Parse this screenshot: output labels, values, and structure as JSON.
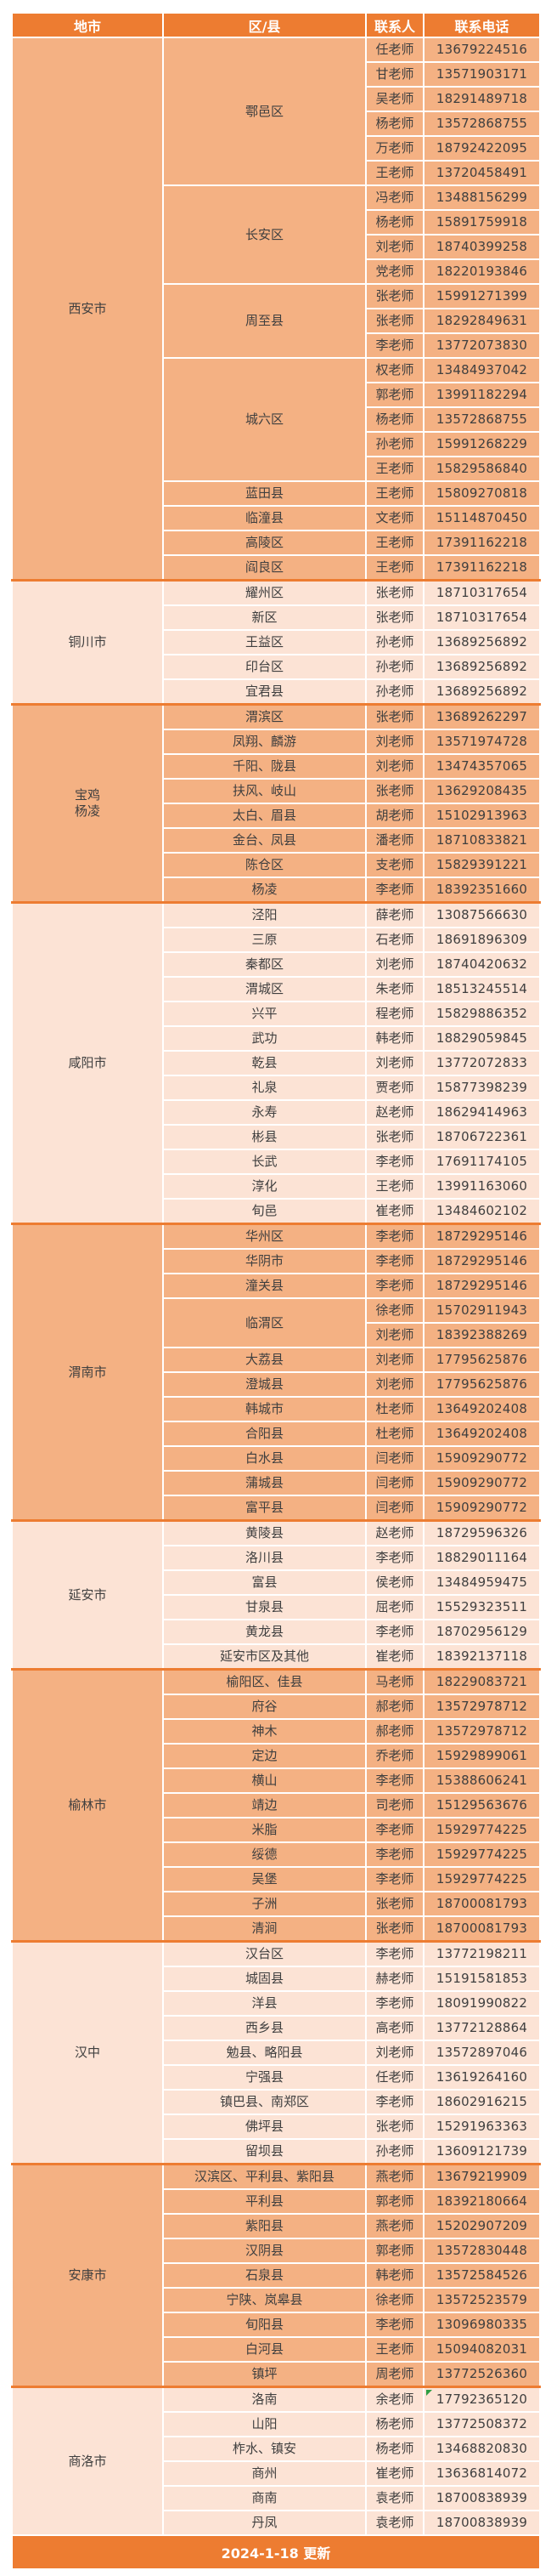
{
  "colors": {
    "header_bg": "#ED7C31",
    "dark_bg": "#F4B183",
    "light_bg": "#FCE3D5",
    "text": "#3F3F3F",
    "marker": "#2F9E44"
  },
  "table": {
    "columns": [
      "地市",
      "区/县",
      "联系人",
      "联系电话"
    ],
    "sections": [
      {
        "city": "西安市",
        "shade": "dark",
        "groups": [
          {
            "district": "鄠邑区",
            "contacts": [
              {
                "name": "任老师",
                "phone": "13679224516"
              },
              {
                "name": "甘老师",
                "phone": "13571903171"
              },
              {
                "name": "吴老师",
                "phone": "18291489718"
              },
              {
                "name": "杨老师",
                "phone": "13572868755"
              },
              {
                "name": "万老师",
                "phone": "18792422095"
              },
              {
                "name": "王老师",
                "phone": "13720458491"
              }
            ]
          },
          {
            "district": "长安区",
            "contacts": [
              {
                "name": "冯老师",
                "phone": "13488156299"
              },
              {
                "name": "杨老师",
                "phone": "15891759918"
              },
              {
                "name": "刘老师",
                "phone": "18740399258"
              },
              {
                "name": "党老师",
                "phone": "18220193846"
              }
            ]
          },
          {
            "district": "周至县",
            "contacts": [
              {
                "name": "张老师",
                "phone": "15991271399"
              },
              {
                "name": "张老师",
                "phone": "18292849631"
              },
              {
                "name": "李老师",
                "phone": "13772073830"
              }
            ]
          },
          {
            "district": "城六区",
            "contacts": [
              {
                "name": "权老师",
                "phone": "13484937042"
              },
              {
                "name": "郭老师",
                "phone": "13991182294"
              },
              {
                "name": "杨老师",
                "phone": "13572868755"
              },
              {
                "name": "孙老师",
                "phone": "15991268229"
              },
              {
                "name": "王老师",
                "phone": "15829586840"
              }
            ]
          },
          {
            "district": "蓝田县",
            "contacts": [
              {
                "name": "王老师",
                "phone": "15809270818"
              }
            ]
          },
          {
            "district": "临潼县",
            "contacts": [
              {
                "name": "文老师",
                "phone": "15114870450"
              }
            ]
          },
          {
            "district": "高陵区",
            "contacts": [
              {
                "name": "王老师",
                "phone": "17391162218"
              }
            ]
          },
          {
            "district": "阎良区",
            "contacts": [
              {
                "name": "王老师",
                "phone": "17391162218"
              }
            ]
          }
        ]
      },
      {
        "city": "铜川市",
        "shade": "light",
        "groups": [
          {
            "district": "耀州区",
            "contacts": [
              {
                "name": "张老师",
                "phone": "18710317654"
              }
            ]
          },
          {
            "district": "新区",
            "contacts": [
              {
                "name": "张老师",
                "phone": "18710317654"
              }
            ]
          },
          {
            "district": "王益区",
            "contacts": [
              {
                "name": "孙老师",
                "phone": "13689256892"
              }
            ]
          },
          {
            "district": "印台区",
            "contacts": [
              {
                "name": "孙老师",
                "phone": "13689256892"
              }
            ]
          },
          {
            "district": "宜君县",
            "contacts": [
              {
                "name": "孙老师",
                "phone": "13689256892"
              }
            ]
          }
        ]
      },
      {
        "city": "宝鸡\n杨凌",
        "shade": "dark",
        "groups": [
          {
            "district": "渭滨区",
            "contacts": [
              {
                "name": "张老师",
                "phone": "13689262297"
              }
            ]
          },
          {
            "district": "凤翔、麟游",
            "contacts": [
              {
                "name": "刘老师",
                "phone": "13571974728"
              }
            ]
          },
          {
            "district": "千阳、陇县",
            "contacts": [
              {
                "name": "刘老师",
                "phone": "13474357065"
              }
            ]
          },
          {
            "district": "扶风、岐山",
            "contacts": [
              {
                "name": "张老师",
                "phone": "13629208435"
              }
            ]
          },
          {
            "district": "太白、眉县",
            "contacts": [
              {
                "name": "胡老师",
                "phone": "15102913963"
              }
            ]
          },
          {
            "district": "金台、凤县",
            "contacts": [
              {
                "name": "潘老师",
                "phone": "18710833821"
              }
            ]
          },
          {
            "district": "陈仓区",
            "contacts": [
              {
                "name": "支老师",
                "phone": "15829391221"
              }
            ]
          },
          {
            "district": "杨凌",
            "contacts": [
              {
                "name": "李老师",
                "phone": "18392351660"
              }
            ]
          }
        ]
      },
      {
        "city": "咸阳市",
        "shade": "light",
        "groups": [
          {
            "district": "泾阳",
            "contacts": [
              {
                "name": "薛老师",
                "phone": "13087566630"
              }
            ]
          },
          {
            "district": "三原",
            "contacts": [
              {
                "name": "石老师",
                "phone": "18691896309"
              }
            ]
          },
          {
            "district": "秦都区",
            "contacts": [
              {
                "name": "刘老师",
                "phone": "18740420632"
              }
            ]
          },
          {
            "district": "渭城区",
            "contacts": [
              {
                "name": "朱老师",
                "phone": "18513245514"
              }
            ]
          },
          {
            "district": "兴平",
            "contacts": [
              {
                "name": "程老师",
                "phone": "15829886352"
              }
            ]
          },
          {
            "district": "武功",
            "contacts": [
              {
                "name": "韩老师",
                "phone": "18829059845"
              }
            ]
          },
          {
            "district": "乾县",
            "contacts": [
              {
                "name": "刘老师",
                "phone": "13772072833"
              }
            ]
          },
          {
            "district": "礼泉",
            "contacts": [
              {
                "name": "贾老师",
                "phone": "15877398239"
              }
            ]
          },
          {
            "district": "永寿",
            "contacts": [
              {
                "name": "赵老师",
                "phone": "18629414963"
              }
            ]
          },
          {
            "district": "彬县",
            "contacts": [
              {
                "name": "张老师",
                "phone": "18706722361"
              }
            ]
          },
          {
            "district": "长武",
            "contacts": [
              {
                "name": "李老师",
                "phone": "17691174105"
              }
            ]
          },
          {
            "district": "淳化",
            "contacts": [
              {
                "name": "王老师",
                "phone": "13991163060"
              }
            ]
          },
          {
            "district": "旬邑",
            "contacts": [
              {
                "name": "崔老师",
                "phone": "13484602102"
              }
            ]
          }
        ]
      },
      {
        "city": "渭南市",
        "shade": "dark",
        "groups": [
          {
            "district": "华州区",
            "contacts": [
              {
                "name": "李老师",
                "phone": "18729295146"
              }
            ]
          },
          {
            "district": "华阴市",
            "contacts": [
              {
                "name": "李老师",
                "phone": "18729295146"
              }
            ]
          },
          {
            "district": "潼关县",
            "contacts": [
              {
                "name": "李老师",
                "phone": "18729295146"
              }
            ]
          },
          {
            "district": "临渭区",
            "contacts": [
              {
                "name": "徐老师",
                "phone": "15702911943"
              },
              {
                "name": "刘老师",
                "phone": "18392388269"
              }
            ]
          },
          {
            "district": "大荔县",
            "contacts": [
              {
                "name": "刘老师",
                "phone": "17795625876"
              }
            ]
          },
          {
            "district": "澄城县",
            "contacts": [
              {
                "name": "刘老师",
                "phone": "17795625876"
              }
            ]
          },
          {
            "district": "韩城市",
            "contacts": [
              {
                "name": "杜老师",
                "phone": "13649202408"
              }
            ]
          },
          {
            "district": "合阳县",
            "contacts": [
              {
                "name": "杜老师",
                "phone": "13649202408"
              }
            ]
          },
          {
            "district": "白水县",
            "contacts": [
              {
                "name": "闫老师",
                "phone": "15909290772"
              }
            ]
          },
          {
            "district": "蒲城县",
            "contacts": [
              {
                "name": "闫老师",
                "phone": "15909290772"
              }
            ]
          },
          {
            "district": "富平县",
            "contacts": [
              {
                "name": "闫老师",
                "phone": "15909290772"
              }
            ]
          }
        ]
      },
      {
        "city": "延安市",
        "shade": "light",
        "groups": [
          {
            "district": "黄陵县",
            "contacts": [
              {
                "name": "赵老师",
                "phone": "18729596326"
              }
            ]
          },
          {
            "district": "洛川县",
            "contacts": [
              {
                "name": "李老师",
                "phone": "18829011164"
              }
            ]
          },
          {
            "district": "富县",
            "contacts": [
              {
                "name": "侯老师",
                "phone": "13484959475"
              }
            ]
          },
          {
            "district": "甘泉县",
            "contacts": [
              {
                "name": "屈老师",
                "phone": "15529323511"
              }
            ]
          },
          {
            "district": "黄龙县",
            "contacts": [
              {
                "name": "李老师",
                "phone": "18702956129"
              }
            ]
          },
          {
            "district": "延安市区及其他",
            "contacts": [
              {
                "name": "崔老师",
                "phone": "18392137118"
              }
            ]
          }
        ]
      },
      {
        "city": "榆林市",
        "shade": "dark",
        "groups": [
          {
            "district": "榆阳区、佳县",
            "contacts": [
              {
                "name": "马老师",
                "phone": "18229083721"
              }
            ]
          },
          {
            "district": "府谷",
            "contacts": [
              {
                "name": "郝老师",
                "phone": "13572978712"
              }
            ]
          },
          {
            "district": "神木",
            "contacts": [
              {
                "name": "郝老师",
                "phone": "13572978712"
              }
            ]
          },
          {
            "district": "定边",
            "contacts": [
              {
                "name": "乔老师",
                "phone": "15929899061"
              }
            ]
          },
          {
            "district": "横山",
            "contacts": [
              {
                "name": "李老师",
                "phone": "15388606241"
              }
            ]
          },
          {
            "district": "靖边",
            "contacts": [
              {
                "name": "司老师",
                "phone": "15129563676"
              }
            ]
          },
          {
            "district": "米脂",
            "contacts": [
              {
                "name": "李老师",
                "phone": "15929774225"
              }
            ]
          },
          {
            "district": "绥德",
            "contacts": [
              {
                "name": "李老师",
                "phone": "15929774225"
              }
            ]
          },
          {
            "district": "吴堡",
            "contacts": [
              {
                "name": "李老师",
                "phone": "15929774225"
              }
            ]
          },
          {
            "district": "子洲",
            "contacts": [
              {
                "name": "张老师",
                "phone": "18700081793"
              }
            ]
          },
          {
            "district": "清涧",
            "contacts": [
              {
                "name": "张老师",
                "phone": "18700081793"
              }
            ]
          }
        ]
      },
      {
        "city": "汉中",
        "shade": "light",
        "groups": [
          {
            "district": "汉台区",
            "contacts": [
              {
                "name": "李老师",
                "phone": "13772198211"
              }
            ]
          },
          {
            "district": "城固县",
            "contacts": [
              {
                "name": "赫老师",
                "phone": "15191581853"
              }
            ]
          },
          {
            "district": "洋县",
            "contacts": [
              {
                "name": "李老师",
                "phone": "18091990822"
              }
            ]
          },
          {
            "district": "西乡县",
            "contacts": [
              {
                "name": "高老师",
                "phone": "13772128864"
              }
            ]
          },
          {
            "district": "勉县、略阳县",
            "contacts": [
              {
                "name": "刘老师",
                "phone": "13572897046"
              }
            ]
          },
          {
            "district": "宁强县",
            "contacts": [
              {
                "name": "任老师",
                "phone": "13619264160"
              }
            ]
          },
          {
            "district": "镇巴县、南郑区",
            "contacts": [
              {
                "name": "李老师",
                "phone": "18602916215"
              }
            ]
          },
          {
            "district": "佛坪县",
            "contacts": [
              {
                "name": "张老师",
                "phone": "15291963363"
              }
            ]
          },
          {
            "district": "留坝县",
            "contacts": [
              {
                "name": "孙老师",
                "phone": "13609121739"
              }
            ]
          }
        ]
      },
      {
        "city": "安康市",
        "shade": "dark",
        "groups": [
          {
            "district": "汉滨区、平利县、紫阳县",
            "contacts": [
              {
                "name": "燕老师",
                "phone": "13679219909"
              }
            ]
          },
          {
            "district": "平利县",
            "contacts": [
              {
                "name": "郭老师",
                "phone": "18392180664"
              }
            ]
          },
          {
            "district": "紫阳县",
            "contacts": [
              {
                "name": "燕老师",
                "phone": "15202907209"
              }
            ]
          },
          {
            "district": "汉阴县",
            "contacts": [
              {
                "name": "郭老师",
                "phone": "13572830448"
              }
            ]
          },
          {
            "district": "石泉县",
            "contacts": [
              {
                "name": "韩老师",
                "phone": "13572584526"
              }
            ]
          },
          {
            "district": "宁陕、岚皋县",
            "contacts": [
              {
                "name": "徐老师",
                "phone": "13572523579"
              }
            ]
          },
          {
            "district": "旬阳县",
            "contacts": [
              {
                "name": "李老师",
                "phone": "13096980335"
              }
            ]
          },
          {
            "district": "白河县",
            "contacts": [
              {
                "name": "王老师",
                "phone": "15094082031"
              }
            ]
          },
          {
            "district": "镇坪",
            "contacts": [
              {
                "name": "周老师",
                "phone": "13772526360"
              }
            ]
          }
        ]
      },
      {
        "city": "商洛市",
        "shade": "light",
        "groups": [
          {
            "district": "洛南",
            "contacts": [
              {
                "name": "余老师",
                "phone": "17792365120",
                "marker": true
              }
            ]
          },
          {
            "district": "山阳",
            "contacts": [
              {
                "name": "杨老师",
                "phone": "13772508372"
              }
            ]
          },
          {
            "district": "柞水、镇安",
            "contacts": [
              {
                "name": "杨老师",
                "phone": "13468820830"
              }
            ]
          },
          {
            "district": "商州",
            "contacts": [
              {
                "name": "崔老师",
                "phone": "13636814072"
              }
            ]
          },
          {
            "district": "商南",
            "contacts": [
              {
                "name": "袁老师",
                "phone": "18700838939"
              }
            ]
          },
          {
            "district": "丹凤",
            "contacts": [
              {
                "name": "袁老师",
                "phone": "18700838939"
              }
            ]
          }
        ]
      }
    ]
  },
  "footer": {
    "text": "2024-1-18 更新"
  }
}
